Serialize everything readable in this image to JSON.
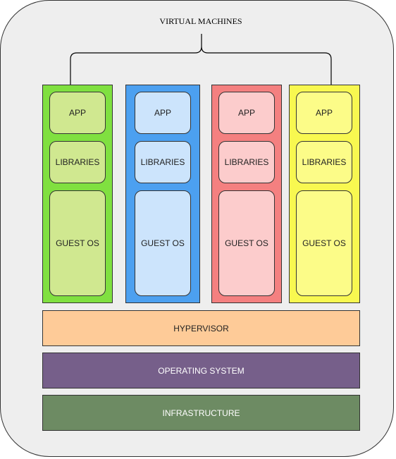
{
  "title": "VIRTUAL MACHINES",
  "vms": [
    {
      "app": "APP",
      "libraries": "LIBRARIES",
      "guest_os": "GUEST OS",
      "outer_color": "#80e040",
      "inner_color": "#d0e890"
    },
    {
      "app": "APP",
      "libraries": "LIBRARIES",
      "guest_os": "GUEST OS",
      "outer_color": "#4ca0f0",
      "inner_color": "#cce4fc"
    },
    {
      "app": "APP",
      "libraries": "LIBRARIES",
      "guest_os": "GUEST OS",
      "outer_color": "#f48080",
      "inner_color": "#fccccc"
    },
    {
      "app": "APP",
      "libraries": "LIBRARIES",
      "guest_os": "GUEST OS",
      "outer_color": "#f8f850",
      "inner_color": "#fcfc88"
    }
  ],
  "layers": {
    "hypervisor": {
      "label": "HYPERVISOR",
      "color": "#fecb98",
      "text_color": "#222222"
    },
    "operating_system": {
      "label": "OPERATING SYSTEM",
      "color": "#765f8a",
      "text_color": "#ffffff"
    },
    "infrastructure": {
      "label": "INFRASTRUCTURE",
      "color": "#6d8b63",
      "text_color": "#ffffff"
    }
  }
}
